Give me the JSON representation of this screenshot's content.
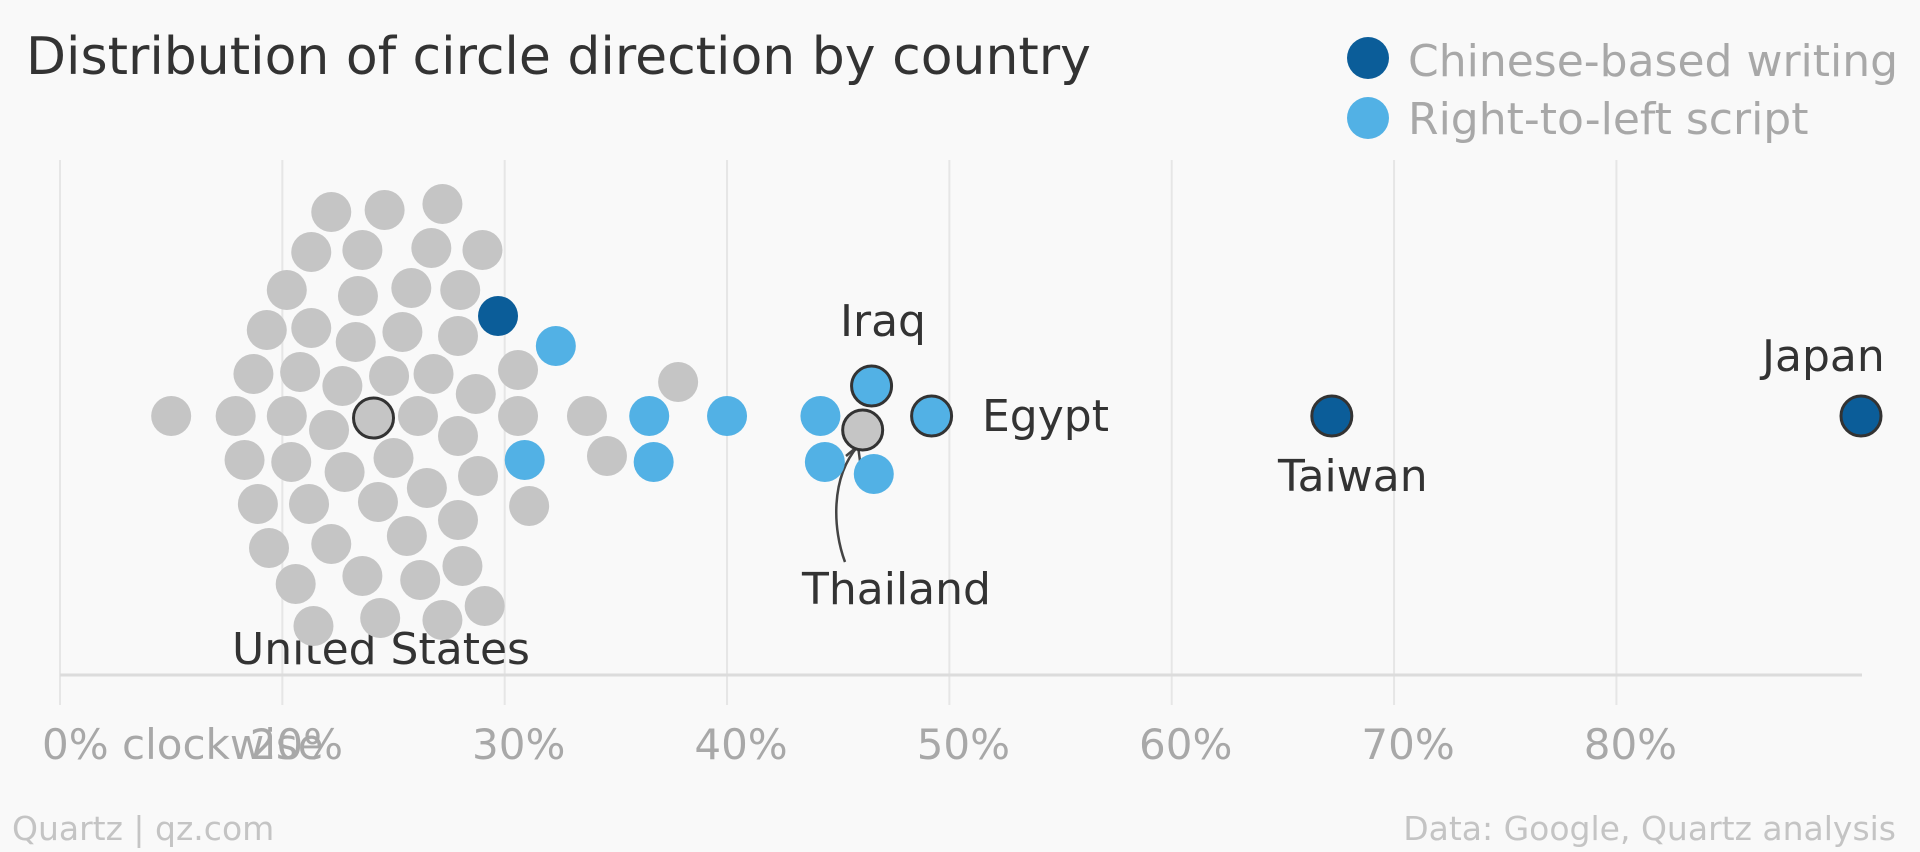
{
  "chart_data": {
    "type": "scatter",
    "title": "Distribution of circle direction by country",
    "xlabel": "",
    "ylabel": "",
    "xlim": [
      0,
      81
    ],
    "xticks": [
      {
        "value": 0,
        "label": "0% clockwise"
      },
      {
        "value": 10,
        "label": "20%"
      },
      {
        "value": 20,
        "label": "30%"
      },
      {
        "value": 30,
        "label": "40%"
      },
      {
        "value": 40,
        "label": "50%"
      },
      {
        "value": 50,
        "label": "60%"
      },
      {
        "value": 60,
        "label": "70%"
      },
      {
        "value": 70,
        "label": "80%"
      }
    ],
    "grid": true,
    "legend_placement": "top-right",
    "colors": {
      "other": "#c5c5c5",
      "chinese": "#0b5d99",
      "rtl": "#52b1e5",
      "highlight_stroke": "#333333"
    },
    "legend": [
      {
        "key": "chinese",
        "label": "Chinese-based writing"
      },
      {
        "key": "rtl",
        "label": "Right-to-left script"
      }
    ],
    "points": [
      {
        "x": 5.0,
        "group": "other"
      },
      {
        "x": 7.9,
        "group": "other"
      },
      {
        "x": 8.3,
        "group": "other"
      },
      {
        "x": 8.7,
        "group": "other"
      },
      {
        "x": 8.9,
        "group": "other"
      },
      {
        "x": 9.3,
        "group": "other"
      },
      {
        "x": 9.4,
        "group": "other"
      },
      {
        "x": 10.2,
        "group": "other"
      },
      {
        "x": 10.2,
        "group": "other"
      },
      {
        "x": 10.4,
        "group": "other"
      },
      {
        "x": 10.6,
        "group": "other"
      },
      {
        "x": 10.8,
        "group": "other"
      },
      {
        "x": 11.2,
        "group": "other"
      },
      {
        "x": 11.3,
        "group": "other"
      },
      {
        "x": 11.3,
        "group": "other"
      },
      {
        "x": 11.4,
        "group": "other"
      },
      {
        "x": 12.1,
        "group": "other"
      },
      {
        "x": 12.2,
        "group": "other"
      },
      {
        "x": 12.2,
        "group": "other"
      },
      {
        "x": 12.7,
        "group": "other"
      },
      {
        "x": 12.8,
        "group": "other"
      },
      {
        "x": 13.3,
        "group": "other"
      },
      {
        "x": 13.4,
        "group": "other"
      },
      {
        "x": 13.6,
        "group": "other"
      },
      {
        "x": 13.6,
        "group": "other"
      },
      {
        "x": 14.1,
        "group": "other",
        "label": "United States"
      },
      {
        "x": 14.3,
        "group": "other"
      },
      {
        "x": 14.4,
        "group": "other"
      },
      {
        "x": 14.6,
        "group": "other"
      },
      {
        "x": 14.8,
        "group": "other"
      },
      {
        "x": 15.0,
        "group": "other"
      },
      {
        "x": 15.4,
        "group": "other"
      },
      {
        "x": 15.6,
        "group": "other"
      },
      {
        "x": 15.8,
        "group": "other"
      },
      {
        "x": 16.1,
        "group": "other"
      },
      {
        "x": 16.2,
        "group": "other"
      },
      {
        "x": 16.5,
        "group": "other"
      },
      {
        "x": 16.7,
        "group": "other"
      },
      {
        "x": 16.8,
        "group": "other"
      },
      {
        "x": 17.2,
        "group": "other"
      },
      {
        "x": 17.2,
        "group": "other"
      },
      {
        "x": 17.9,
        "group": "other"
      },
      {
        "x": 17.9,
        "group": "other"
      },
      {
        "x": 17.9,
        "group": "other"
      },
      {
        "x": 18.0,
        "group": "other"
      },
      {
        "x": 18.1,
        "group": "other"
      },
      {
        "x": 18.7,
        "group": "other"
      },
      {
        "x": 18.8,
        "group": "other"
      },
      {
        "x": 19.0,
        "group": "other"
      },
      {
        "x": 19.1,
        "group": "other"
      },
      {
        "x": 19.7,
        "group": "chinese"
      },
      {
        "x": 20.6,
        "group": "other"
      },
      {
        "x": 20.6,
        "group": "other"
      },
      {
        "x": 20.9,
        "group": "rtl"
      },
      {
        "x": 21.1,
        "group": "other"
      },
      {
        "x": 22.3,
        "group": "rtl"
      },
      {
        "x": 23.7,
        "group": "other"
      },
      {
        "x": 24.6,
        "group": "other"
      },
      {
        "x": 26.5,
        "group": "rtl"
      },
      {
        "x": 26.7,
        "group": "rtl"
      },
      {
        "x": 27.8,
        "group": "other"
      },
      {
        "x": 30.0,
        "group": "rtl"
      },
      {
        "x": 34.2,
        "group": "rtl"
      },
      {
        "x": 34.4,
        "group": "rtl"
      },
      {
        "x": 36.1,
        "group": "other",
        "label": "Thailand"
      },
      {
        "x": 36.5,
        "group": "rtl",
        "label": "Iraq"
      },
      {
        "x": 36.6,
        "group": "rtl"
      },
      {
        "x": 39.2,
        "group": "rtl",
        "label": "Egypt"
      },
      {
        "x": 57.2,
        "group": "chinese",
        "label": "Taiwan"
      },
      {
        "x": 81.0,
        "group": "chinese",
        "label": "Japan"
      }
    ]
  },
  "footer": {
    "source_left": "Quartz | qz.com",
    "source_right": "Data: Google, Quartz analysis"
  }
}
